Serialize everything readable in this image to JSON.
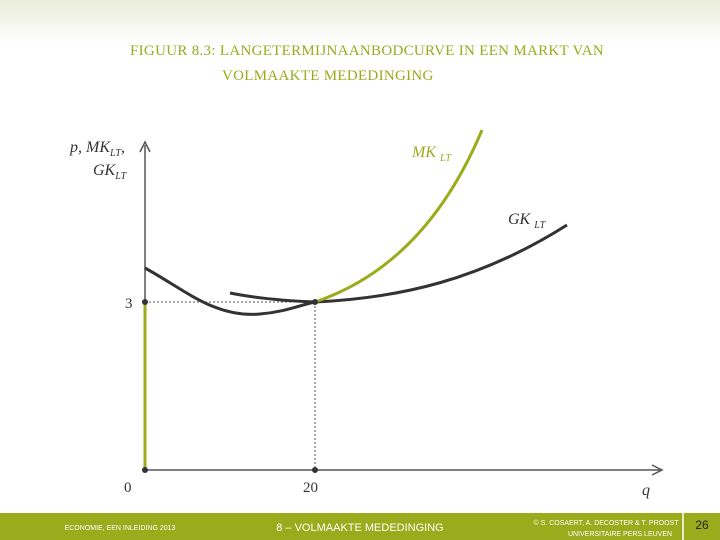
{
  "header": {
    "title_lines": [
      "FIGUUR 8.3: LANGETERMIJNAANBODCURVE IN EEN MARKT VAN",
      "VOLMAAKTE MEDEDINGING"
    ]
  },
  "diagram": {
    "y_axis_label": {
      "line1": "p, MK",
      "line1_sub": "LT",
      "line1_end": ",",
      "line2": "GK",
      "line2_sub": "LT"
    },
    "x_axis_label": "q",
    "origin_label": "0",
    "y_tick_label": "3",
    "x_tick_label": "20",
    "curves": [
      {
        "name": "MK",
        "sub": "LT"
      },
      {
        "name": "GK",
        "sub": "LT"
      }
    ]
  },
  "footer": {
    "left": "ECONOMIE, EEN INLEIDING 2013",
    "center": "8 – VOLMAAKTE MEDEDINGING",
    "right_lines": [
      "© S. COSAERT, A. DECOSTER & T. PROOST",
      "UNIVERSITAIRE PERS LEUVEN"
    ],
    "page": "26"
  }
}
